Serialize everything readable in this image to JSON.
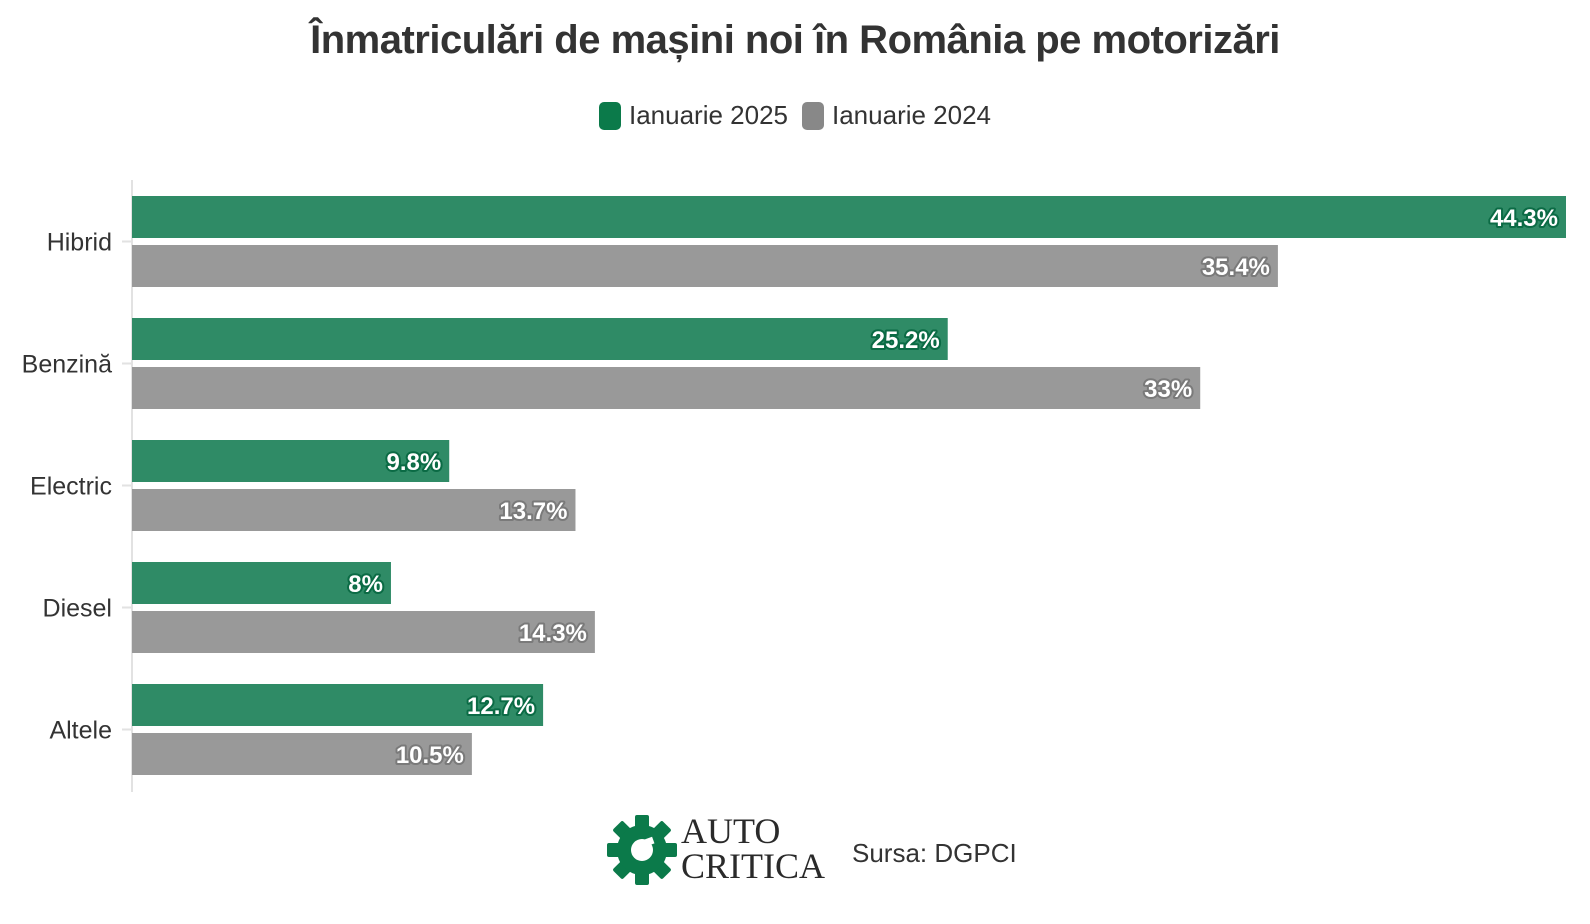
{
  "colors": {
    "series_2025": "#2f8b66",
    "series_2024": "#999999",
    "stroke_2025": "#0b6b45",
    "stroke_2024": "#7a7a7a",
    "axis": "#e2e2e2",
    "logo_green": "#0b7a4a"
  },
  "chart_data": {
    "type": "bar",
    "orientation": "horizontal",
    "title": "Înmatriculări de mașini noi în România pe motorizări",
    "categories": [
      "Hibrid",
      "Benzină",
      "Electric",
      "Diesel",
      "Altele"
    ],
    "series": [
      {
        "name": "Ianuarie 2025",
        "values": [
          44.3,
          25.2,
          9.8,
          8,
          12.7
        ],
        "labels": [
          "44.3%",
          "25.2%",
          "9.8%",
          "8%",
          "12.7%"
        ]
      },
      {
        "name": "Ianuarie 2024",
        "values": [
          35.4,
          33,
          13.7,
          14.3,
          10.5
        ],
        "labels": [
          "35.4%",
          "33%",
          "13.7%",
          "14.3%",
          "10.5%"
        ]
      }
    ],
    "xlim": [
      0,
      44.3
    ],
    "grid": false,
    "legend_position": "top-center"
  },
  "footer": {
    "logo_line1": "AUTO",
    "logo_line2": "CRITICA",
    "logo_icon": "gear-icon",
    "source": "Sursa: DGPCI"
  }
}
